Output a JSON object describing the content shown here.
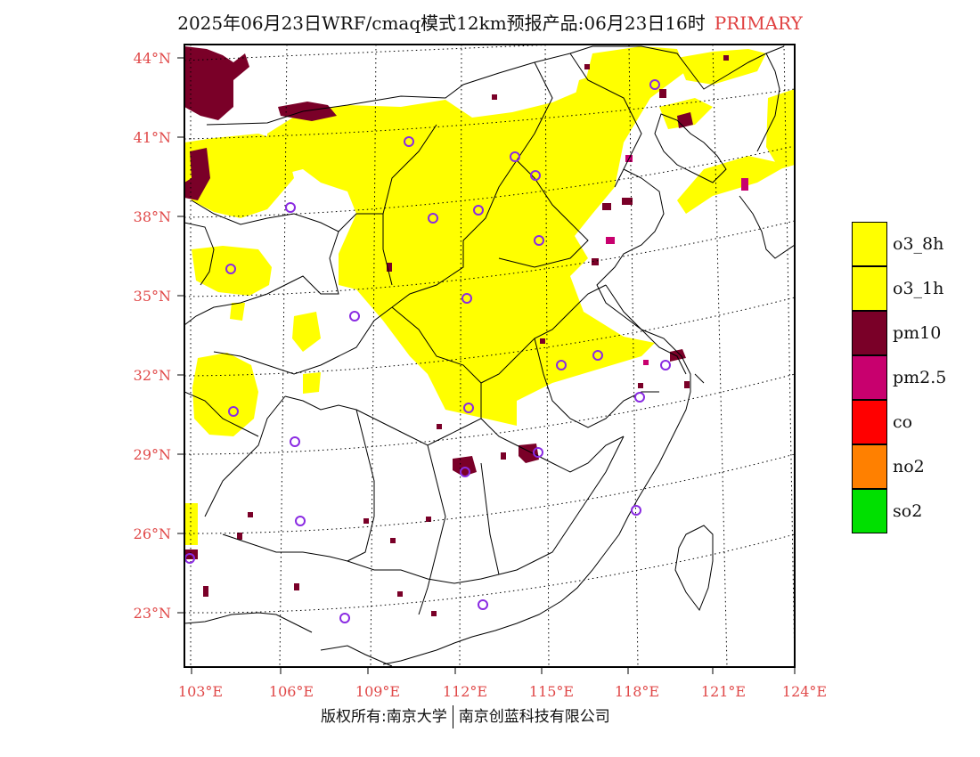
{
  "title": {
    "text": "2025年06月23日WRF/cmaq模式12km预报产品:06月23日16时",
    "tag": "PRIMARY"
  },
  "axes": {
    "lon_labels": [
      "103°E",
      "106°E",
      "109°E",
      "112°E",
      "115°E",
      "118°E",
      "121°E",
      "124°E"
    ],
    "lat_labels": [
      "44°N",
      "41°N",
      "38°N",
      "35°N",
      "32°N",
      "29°N",
      "26°N",
      "23°N"
    ]
  },
  "legend": [
    {
      "label": "o3_8h",
      "color": "#ffff00"
    },
    {
      "label": "o3_1h",
      "color": "#ffff00"
    },
    {
      "label": "pm10",
      "color": "#7a0028"
    },
    {
      "label": "pm2.5",
      "color": "#c8006e"
    },
    {
      "label": "co",
      "color": "#ff0000"
    },
    {
      "label": "no2",
      "color": "#ff8000"
    },
    {
      "label": "so2",
      "color": "#00e000"
    }
  ],
  "colors": {
    "o3": "#ffff00",
    "pm10": "#7a0028",
    "pm25": "#c8006e",
    "station": "#8a2be2",
    "tick": "#e04848"
  },
  "footer": {
    "left": "版权所有:南京大学",
    "right": "南京创蓝科技有限公司"
  }
}
